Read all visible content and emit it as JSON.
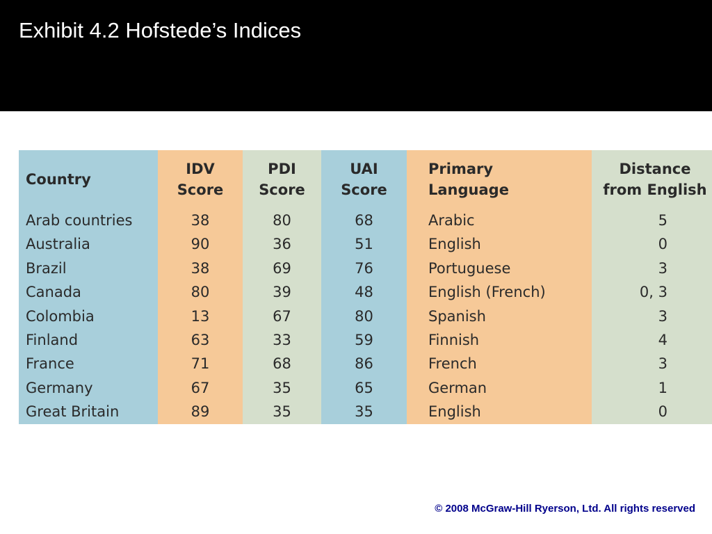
{
  "slide": {
    "title": "Exhibit 4.2 Hofstede’s Indices",
    "footer": "© 2008 McGraw-Hill Ryerson, Ltd. All rights reserved"
  },
  "colors": {
    "title_bar": "#000000",
    "title_text": "#ffffff",
    "footer_text": "#00008b",
    "blue_column": "#a8cfdb",
    "orange_column": "#f6c998",
    "green_column": "#d5dfcc"
  },
  "table": {
    "headers": {
      "country": [
        "Country"
      ],
      "idv": [
        "IDV",
        "Score"
      ],
      "pdi": [
        "PDI",
        "Score"
      ],
      "uai": [
        "UAI",
        "Score"
      ],
      "language": [
        "Primary",
        "Language"
      ],
      "distance": [
        "Distance",
        "from English"
      ]
    },
    "rows": [
      {
        "country": "Arab countries",
        "idv": "38",
        "pdi": "80",
        "uai": "68",
        "language": "Arabic",
        "distance": "5"
      },
      {
        "country": "Australia",
        "idv": "90",
        "pdi": "36",
        "uai": "51",
        "language": "English",
        "distance": "0"
      },
      {
        "country": "Brazil",
        "idv": "38",
        "pdi": "69",
        "uai": "76",
        "language": "Portuguese",
        "distance": "3"
      },
      {
        "country": "Canada",
        "idv": "80",
        "pdi": "39",
        "uai": "48",
        "language": "English (French)",
        "distance": "0, 3"
      },
      {
        "country": "Colombia",
        "idv": "13",
        "pdi": "67",
        "uai": "80",
        "language": "Spanish",
        "distance": "3"
      },
      {
        "country": "Finland",
        "idv": "63",
        "pdi": "33",
        "uai": "59",
        "language": "Finnish",
        "distance": "4"
      },
      {
        "country": "France",
        "idv": "71",
        "pdi": "68",
        "uai": "86",
        "language": "French",
        "distance": "3"
      },
      {
        "country": "Germany",
        "idv": "67",
        "pdi": "35",
        "uai": "65",
        "language": "German",
        "distance": "1"
      },
      {
        "country": "Great Britain",
        "idv": "89",
        "pdi": "35",
        "uai": "35",
        "language": "English",
        "distance": "0"
      }
    ]
  }
}
